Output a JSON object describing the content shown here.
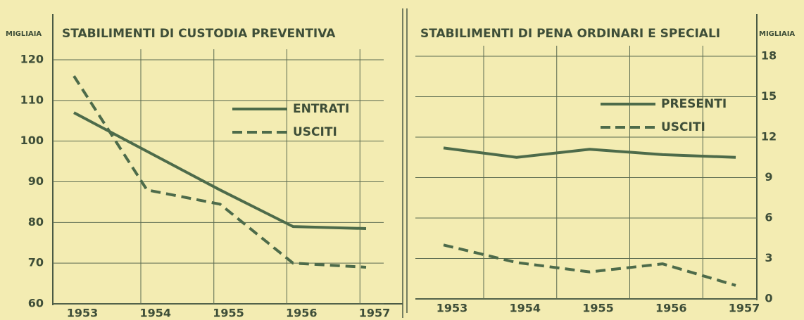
{
  "chart_data": [
    {
      "type": "line",
      "title": "STABILIMENTI DI CUSTODIA PREVENTIVA",
      "ylabel": "MIGLIAIA",
      "categories": [
        "1953",
        "1954",
        "1955",
        "1956",
        "1957"
      ],
      "series": [
        {
          "name": "ENTRATI",
          "color": "#4d6b4a",
          "line_style": "solid",
          "values": [
            107,
            97.5,
            88,
            79,
            78.5
          ]
        },
        {
          "name": "USCITI",
          "color": "#4d6b4a",
          "line_style": "dashed",
          "values": [
            116,
            88,
            84.5,
            70,
            69
          ]
        }
      ],
      "ylim": [
        60,
        120
      ],
      "yticks": [
        60,
        70,
        80,
        90,
        100,
        110,
        120
      ],
      "grid": true
    },
    {
      "type": "line",
      "title": "STABILIMENTI DI PENA ORDINARI E SPECIALI",
      "ylabel": "MIGLIAIA",
      "categories": [
        "1953",
        "1954",
        "1955",
        "1956",
        "1957"
      ],
      "series": [
        {
          "name": "PRESENTI",
          "color": "#4d6b4a",
          "line_style": "solid",
          "values": [
            11.2,
            10.5,
            11.1,
            10.7,
            10.5
          ]
        },
        {
          "name": "USCITI",
          "color": "#4d6b4a",
          "line_style": "dashed",
          "values": [
            4,
            2.7,
            2,
            2.6,
            1
          ]
        }
      ],
      "ylim": [
        0,
        18
      ],
      "yticks": [
        0,
        3,
        6,
        9,
        12,
        15,
        18
      ],
      "grid": true
    }
  ]
}
